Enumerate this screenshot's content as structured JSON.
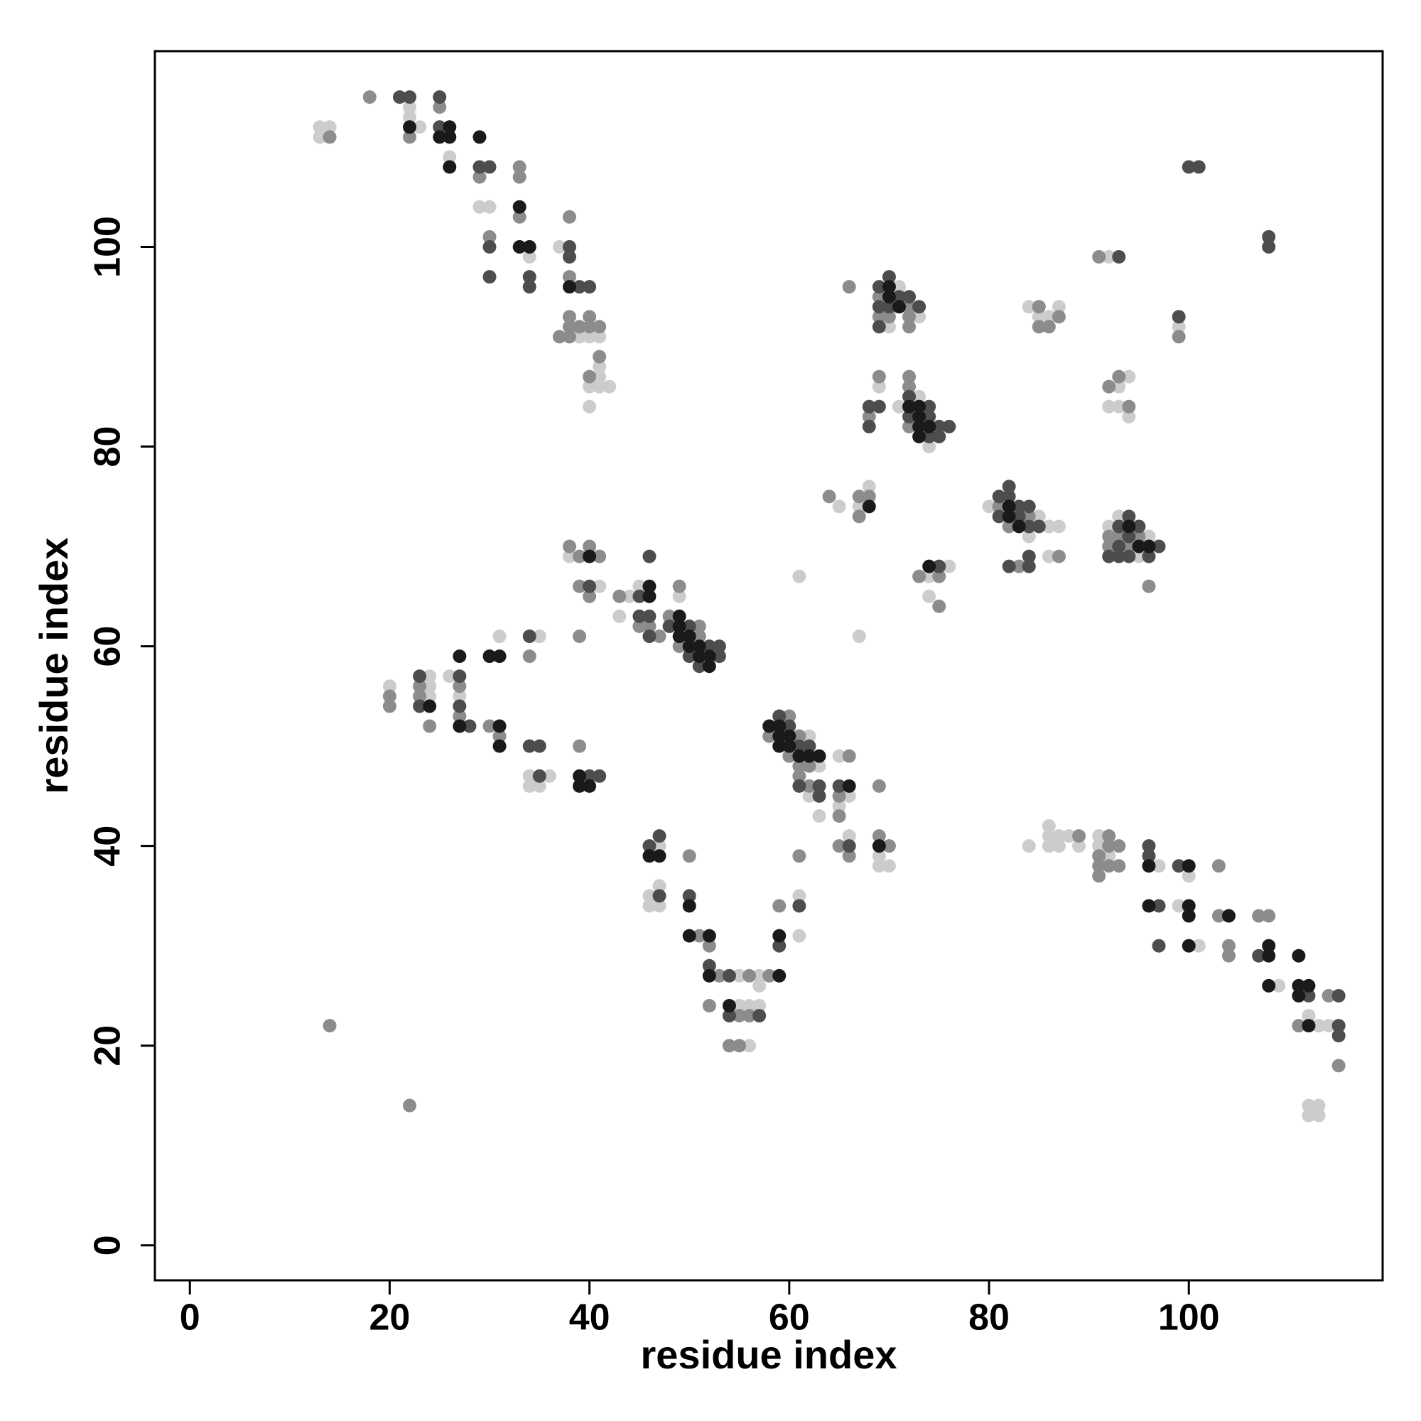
{
  "chart_data": {
    "type": "scatter",
    "x_label": "residue index",
    "y_label": "residue index",
    "xlim": [
      -3.5,
      119.4
    ],
    "ylim": [
      -3.5,
      119.6
    ],
    "xticks": [
      0,
      20,
      40,
      60,
      80,
      100
    ],
    "yticks": [
      0,
      20,
      40,
      60,
      80,
      100
    ],
    "series": [
      {
        "color": "#cccccc",
        "x": [
          13,
          13,
          14,
          22,
          22,
          23,
          26,
          29,
          30,
          34,
          37,
          39,
          40,
          41,
          41,
          41,
          40,
          41,
          42,
          40,
          38,
          41,
          44,
          45,
          43,
          49,
          20,
          24,
          24,
          24,
          26,
          27,
          31,
          35,
          34,
          36,
          34,
          35,
          62,
          62,
          63,
          63,
          65,
          66,
          65,
          66,
          69,
          69,
          70,
          47,
          47,
          46,
          46,
          47,
          55,
          57,
          57,
          55,
          56,
          57,
          56,
          61,
          61,
          61,
          67,
          70,
          71,
          73,
          69,
          73,
          71,
          74,
          65,
          68,
          67,
          76,
          74,
          74,
          80,
          84,
          85,
          86,
          87,
          86,
          84,
          85,
          87,
          86,
          92,
          93,
          96,
          95,
          94,
          92,
          93,
          93,
          94,
          92,
          99,
          84,
          86,
          86,
          86,
          87,
          87,
          88,
          89,
          91,
          91,
          92,
          97,
          100,
          99,
          101,
          109,
          112,
          113,
          114,
          112,
          113,
          112,
          113
        ],
        "values": [
          112,
          111,
          112,
          114,
          113,
          112,
          109,
          104,
          104,
          99,
          100,
          91,
          91,
          91,
          88,
          87,
          86,
          86,
          86,
          84,
          69,
          66,
          65,
          66,
          63,
          65,
          56,
          57,
          56,
          55,
          57,
          55,
          61,
          61,
          47,
          47,
          46,
          46,
          51,
          45,
          48,
          43,
          49,
          45,
          44,
          41,
          39,
          38,
          38,
          40,
          36,
          35,
          34,
          34,
          27,
          27,
          26,
          24,
          24,
          24,
          20,
          35,
          31,
          67,
          61,
          92,
          96,
          93,
          86,
          85,
          84,
          80,
          74,
          76,
          74,
          68,
          67,
          65,
          74,
          71,
          73,
          72,
          72,
          69,
          94,
          93,
          94,
          93,
          72,
          73,
          71,
          69,
          87,
          84,
          84,
          86,
          83,
          99,
          92,
          40,
          42,
          41,
          40,
          41,
          40,
          41,
          40,
          41,
          40,
          39,
          38,
          37,
          34,
          30,
          26,
          23,
          22,
          22,
          14,
          14,
          13,
          13
        ]
      },
      {
        "color": "#8c8c8c",
        "x": [
          14,
          18,
          22,
          25,
          29,
          30,
          33,
          33,
          33,
          38,
          38,
          38,
          38,
          39,
          40,
          40,
          41,
          37,
          38,
          41,
          40,
          38,
          39,
          40,
          41,
          39,
          40,
          39,
          43,
          45,
          46,
          47,
          48,
          49,
          51,
          51,
          49,
          20,
          20,
          23,
          23,
          24,
          27,
          27,
          30,
          31,
          34,
          39,
          58,
          60,
          60,
          61,
          62,
          61,
          61,
          62,
          66,
          65,
          65,
          65,
          66,
          69,
          69,
          70,
          50,
          51,
          52,
          53,
          56,
          58,
          52,
          55,
          56,
          54,
          55,
          59,
          61,
          14,
          22,
          66,
          69,
          69,
          70,
          72,
          72,
          72,
          69,
          68,
          72,
          72,
          72,
          64,
          67,
          68,
          67,
          73,
          75,
          75,
          81,
          82,
          84,
          83,
          87,
          85,
          85,
          87,
          86,
          92,
          92,
          93,
          94,
          95,
          96,
          92,
          93,
          94,
          91,
          99,
          89,
          91,
          91,
          91,
          92,
          92,
          92,
          93,
          93,
          103,
          103,
          104,
          104,
          107,
          108,
          111,
          114,
          115
        ],
        "values": [
          111,
          115,
          111,
          114,
          107,
          101,
          108,
          107,
          103,
          103,
          97,
          93,
          92,
          92,
          93,
          92,
          92,
          91,
          91,
          89,
          87,
          70,
          69,
          70,
          69,
          66,
          65,
          61,
          65,
          62,
          62,
          61,
          63,
          66,
          62,
          61,
          60,
          55,
          54,
          56,
          55,
          52,
          56,
          53,
          52,
          51,
          59,
          50,
          51,
          53,
          49,
          51,
          48,
          48,
          47,
          46,
          49,
          45,
          43,
          40,
          39,
          46,
          41,
          40,
          39,
          31,
          30,
          27,
          27,
          27,
          24,
          23,
          23,
          20,
          20,
          34,
          39,
          22,
          14,
          96,
          95,
          93,
          93,
          94,
          93,
          92,
          87,
          83,
          87,
          86,
          82,
          75,
          75,
          75,
          73,
          67,
          67,
          64,
          74,
          72,
          73,
          68,
          69,
          94,
          92,
          93,
          92,
          71,
          70,
          71,
          70,
          71,
          66,
          86,
          87,
          84,
          99,
          91,
          41,
          39,
          38,
          37,
          41,
          40,
          38,
          40,
          38,
          38,
          33,
          30,
          29,
          33,
          33,
          22,
          25,
          18
        ]
      },
      {
        "color": "#4d4d4d",
        "x": [
          21,
          22,
          25,
          25,
          29,
          30,
          30,
          30,
          34,
          34,
          38,
          38,
          39,
          40,
          40,
          45,
          46,
          45,
          46,
          46,
          48,
          50,
          52,
          51,
          53,
          53,
          50,
          23,
          23,
          27,
          27,
          28,
          34,
          34,
          35,
          35,
          40,
          41,
          59,
          60,
          61,
          62,
          61,
          63,
          63,
          65,
          66,
          46,
          47,
          47,
          50,
          52,
          54,
          54,
          57,
          59,
          61,
          69,
          69,
          69,
          70,
          70,
          71,
          72,
          73,
          68,
          69,
          68,
          72,
          74,
          72,
          74,
          75,
          76,
          74,
          75,
          75,
          81,
          81,
          82,
          82,
          83,
          83,
          84,
          84,
          85,
          82,
          84,
          84,
          92,
          93,
          93,
          93,
          94,
          94,
          94,
          95,
          96,
          97,
          93,
          99,
          100,
          101,
          108,
          108,
          96,
          96,
          97,
          97,
          99,
          107,
          112,
          115,
          115,
          115
        ],
        "values": [
          115,
          115,
          115,
          112,
          108,
          108,
          100,
          97,
          97,
          96,
          100,
          99,
          96,
          96,
          66,
          65,
          69,
          63,
          63,
          61,
          62,
          62,
          60,
          58,
          60,
          59,
          59,
          57,
          54,
          57,
          54,
          52,
          61,
          50,
          50,
          47,
          47,
          47,
          53,
          52,
          50,
          50,
          46,
          46,
          45,
          46,
          40,
          40,
          41,
          35,
          35,
          28,
          27,
          23,
          23,
          30,
          34,
          96,
          94,
          92,
          97,
          94,
          95,
          95,
          94,
          84,
          84,
          82,
          85,
          84,
          83,
          83,
          82,
          82,
          81,
          81,
          68,
          75,
          73,
          76,
          75,
          74,
          73,
          74,
          72,
          72,
          68,
          68,
          69,
          69,
          72,
          70,
          69,
          73,
          71,
          69,
          72,
          69,
          70,
          99,
          93,
          108,
          108,
          101,
          100,
          40,
          39,
          34,
          30,
          38,
          29,
          25,
          25,
          22,
          21
        ]
      },
      {
        "color": "#1a1a1a",
        "x": [
          22,
          25,
          26,
          26,
          26,
          29,
          33,
          33,
          34,
          38,
          40,
          46,
          46,
          49,
          49,
          49,
          50,
          50,
          51,
          51,
          52,
          52,
          24,
          27,
          27,
          30,
          31,
          31,
          31,
          39,
          39,
          40,
          58,
          59,
          59,
          59,
          60,
          60,
          61,
          62,
          63,
          66,
          69,
          46,
          47,
          50,
          50,
          52,
          52,
          59,
          54,
          59,
          70,
          70,
          71,
          72,
          73,
          73,
          73,
          74,
          73,
          68,
          74,
          82,
          82,
          83,
          94,
          95,
          96,
          96,
          96,
          100,
          100,
          100,
          100,
          104,
          108,
          108,
          108,
          111,
          111,
          112,
          111,
          112
        ],
        "values": [
          112,
          111,
          112,
          111,
          108,
          111,
          104,
          100,
          100,
          96,
          69,
          66,
          65,
          63,
          62,
          61,
          61,
          60,
          60,
          59,
          59,
          58,
          54,
          59,
          52,
          59,
          59,
          52,
          50,
          47,
          46,
          46,
          52,
          52,
          51,
          50,
          51,
          50,
          49,
          49,
          49,
          46,
          40,
          39,
          39,
          34,
          31,
          31,
          27,
          27,
          24,
          31,
          96,
          95,
          94,
          84,
          84,
          83,
          82,
          82,
          81,
          74,
          68,
          74,
          73,
          72,
          72,
          70,
          70,
          38,
          34,
          38,
          34,
          33,
          30,
          33,
          30,
          29,
          26,
          29,
          26,
          26,
          25,
          22
        ]
      }
    ]
  }
}
